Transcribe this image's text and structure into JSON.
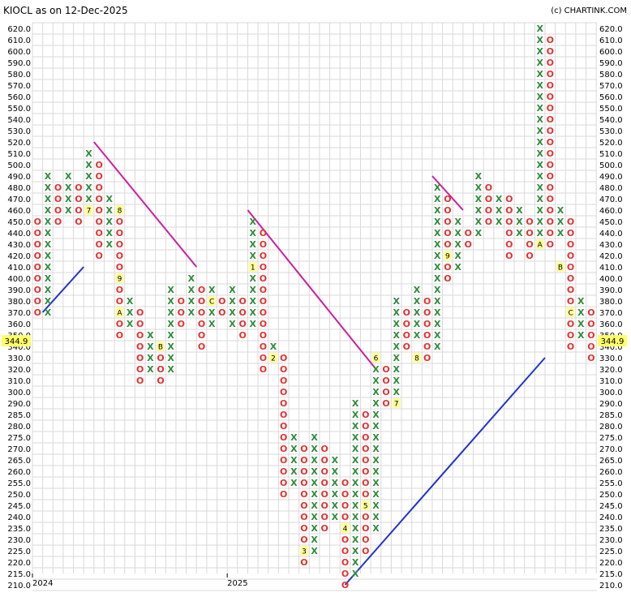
{
  "header": {
    "title": "KIOCL as on 12-Dec-2025",
    "credit": "(c) CHARTINK.COM"
  },
  "chart_data": {
    "type": "point-and-figure",
    "title": "KIOCL as on 12-Dec-2025",
    "box_size": 5,
    "last_price_label": "344.9",
    "last_price": 344.9,
    "ylim": [
      210,
      620
    ],
    "y_ticks": [
      "620.0",
      "610.0",
      "600.0",
      "590.0",
      "580.0",
      "570.0",
      "560.0",
      "550.0",
      "540.0",
      "530.0",
      "520.0",
      "510.0",
      "500.0",
      "490.0",
      "480.0",
      "470.0",
      "460.0",
      "450.0",
      "440.0",
      "430.0",
      "420.0",
      "410.0",
      "400.0",
      "390.0",
      "380.0",
      "370.0",
      "360.0",
      "350.0",
      "340.0",
      "330.0",
      "320.0",
      "310.0",
      "300.0",
      "290.0",
      "285.0",
      "280.0",
      "275.0",
      "270.0",
      "265.0",
      "260.0",
      "255.0",
      "250.0",
      "245.0",
      "240.0",
      "235.0",
      "230.0",
      "225.0",
      "220.0",
      "215.0",
      "210.0"
    ],
    "x_labels": [
      {
        "label": "2024",
        "column": 1
      },
      {
        "label": "2025",
        "column": 20
      }
    ],
    "columns": [
      {
        "type": "O",
        "high": 450,
        "low": 370
      },
      {
        "type": "X",
        "high": 490,
        "low": 370
      },
      {
        "type": "O",
        "high": 480,
        "low": 450
      },
      {
        "type": "X",
        "high": 490,
        "low": 460
      },
      {
        "type": "O",
        "high": 480,
        "low": 450
      },
      {
        "type": "X",
        "high": 510,
        "low": 460
      },
      {
        "type": "O",
        "high": 500,
        "low": 420
      },
      {
        "type": "X",
        "high": 470,
        "low": 430
      },
      {
        "type": "O",
        "high": 460,
        "low": 350
      },
      {
        "type": "X",
        "high": 380,
        "low": 360
      },
      {
        "type": "O",
        "high": 370,
        "low": 310
      },
      {
        "type": "X",
        "high": 350,
        "low": 320
      },
      {
        "type": "O",
        "high": 340,
        "low": 310
      },
      {
        "type": "X",
        "high": 390,
        "low": 320
      },
      {
        "type": "O",
        "high": 380,
        "low": 360
      },
      {
        "type": "X",
        "high": 400,
        "low": 370
      },
      {
        "type": "O",
        "high": 390,
        "low": 340
      },
      {
        "type": "X",
        "high": 390,
        "low": 360
      },
      {
        "type": "O",
        "high": 380,
        "low": 370
      },
      {
        "type": "X",
        "high": 390,
        "low": 360
      },
      {
        "type": "O",
        "high": 380,
        "low": 350
      },
      {
        "type": "X",
        "high": 450,
        "low": 360
      },
      {
        "type": "O",
        "high": 440,
        "low": 320
      },
      {
        "type": "X",
        "high": 340,
        "low": 330
      },
      {
        "type": "O",
        "high": 330,
        "low": 250
      },
      {
        "type": "X",
        "high": 275,
        "low": 255
      },
      {
        "type": "O",
        "high": 270,
        "low": 220
      },
      {
        "type": "X",
        "high": 275,
        "low": 225
      },
      {
        "type": "O",
        "high": 270,
        "low": 235
      },
      {
        "type": "X",
        "high": 265,
        "low": 240
      },
      {
        "type": "O",
        "high": 255,
        "low": 210
      },
      {
        "type": "X",
        "high": 290,
        "low": 215
      },
      {
        "type": "O",
        "high": 285,
        "low": 225
      },
      {
        "type": "X",
        "high": 330,
        "low": 235
      },
      {
        "type": "O",
        "high": 320,
        "low": 290
      },
      {
        "type": "X",
        "high": 380,
        "low": 300
      },
      {
        "type": "O",
        "high": 370,
        "low": 340
      },
      {
        "type": "X",
        "high": 390,
        "low": 350
      },
      {
        "type": "O",
        "high": 380,
        "low": 330
      },
      {
        "type": "X",
        "high": 480,
        "low": 340
      },
      {
        "type": "O",
        "high": 470,
        "low": 400
      },
      {
        "type": "X",
        "high": 450,
        "low": 410
      },
      {
        "type": "O",
        "high": 440,
        "low": 430
      },
      {
        "type": "X",
        "high": 490,
        "low": 440
      },
      {
        "type": "O",
        "high": 480,
        "low": 450
      },
      {
        "type": "X",
        "high": 470,
        "low": 450
      },
      {
        "type": "O",
        "high": 470,
        "low": 420
      },
      {
        "type": "X",
        "high": 460,
        "low": 440
      },
      {
        "type": "O",
        "high": 450,
        "low": 420
      },
      {
        "type": "X",
        "high": 620,
        "low": 430
      },
      {
        "type": "O",
        "high": 610,
        "low": 430
      },
      {
        "type": "X",
        "high": 460,
        "low": 440
      },
      {
        "type": "O",
        "high": 450,
        "low": 340
      },
      {
        "type": "X",
        "high": 380,
        "low": 350
      },
      {
        "type": "O",
        "high": 370,
        "low": 330
      }
    ],
    "month_markers": [
      {
        "label": "7",
        "column": 5,
        "price": 460
      },
      {
        "label": "8",
        "column": 8,
        "price": 460
      },
      {
        "label": "9",
        "column": 8,
        "price": 400
      },
      {
        "label": "A",
        "column": 8,
        "price": 370
      },
      {
        "label": "B",
        "column": 12,
        "price": 340
      },
      {
        "label": "C",
        "column": 17,
        "price": 380
      },
      {
        "label": "1",
        "column": 21,
        "price": 410
      },
      {
        "label": "2",
        "column": 23,
        "price": 330
      },
      {
        "label": "3",
        "column": 26,
        "price": 225
      },
      {
        "label": "4",
        "column": 30,
        "price": 235
      },
      {
        "label": "5",
        "column": 32,
        "price": 245
      },
      {
        "label": "6",
        "column": 33,
        "price": 330
      },
      {
        "label": "7",
        "column": 35,
        "price": 290
      },
      {
        "label": "8",
        "column": 37,
        "price": 330
      },
      {
        "label": "9",
        "column": 40,
        "price": 420
      },
      {
        "label": "A",
        "column": 49,
        "price": 430
      },
      {
        "label": "B",
        "column": 51,
        "price": 410
      },
      {
        "label": "C",
        "column": 52,
        "price": 370
      }
    ],
    "trendlines": [
      {
        "color": "#cc1f9e",
        "from": {
          "column": 5.5,
          "price": 520
        },
        "to": {
          "column": 15.5,
          "price": 410
        }
      },
      {
        "color": "#cc1f9e",
        "from": {
          "column": 20.5,
          "price": 460
        },
        "to": {
          "column": 33,
          "price": 320
        }
      },
      {
        "color": "#cc1f9e",
        "from": {
          "column": 38.5,
          "price": 490
        },
        "to": {
          "column": 41.5,
          "price": 460
        }
      },
      {
        "color": "#2233cc",
        "from": {
          "column": 0.5,
          "price": 370
        },
        "to": {
          "column": 4.5,
          "price": 410
        }
      },
      {
        "color": "#2233cc",
        "from": {
          "column": 30,
          "price": 210
        },
        "to": {
          "column": 49.5,
          "price": 330
        }
      }
    ],
    "colors": {
      "x": "#2e8b3a",
      "o": "#e53030",
      "grid": "#d9d9d9",
      "month_box": "#ffff99",
      "price_box": "#ffff66"
    }
  }
}
